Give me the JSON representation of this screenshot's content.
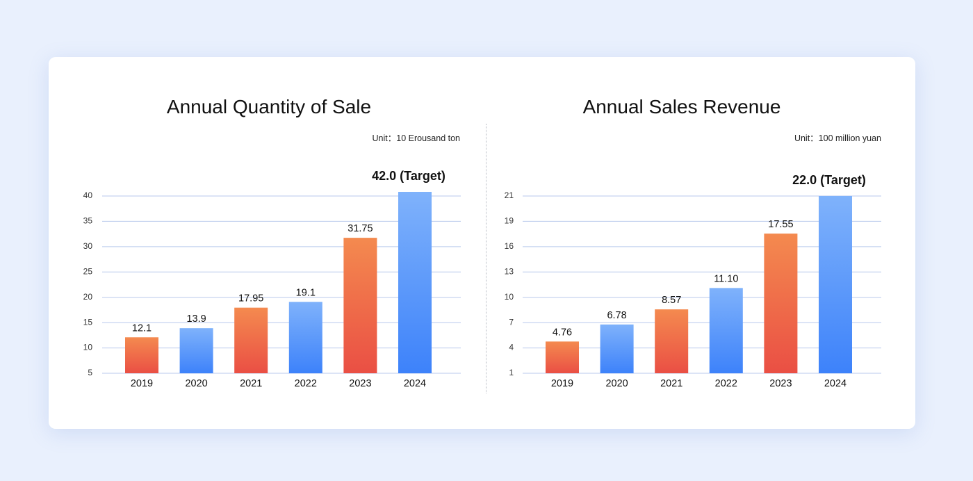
{
  "chart_data": [
    {
      "type": "bar",
      "title": "Annual Quantity of Sale",
      "unit": "Unit：10 Erousand ton",
      "categories": [
        "2019",
        "2020",
        "2021",
        "2022",
        "2023",
        "2024"
      ],
      "values": [
        12.1,
        13.9,
        17.95,
        19.1,
        31.75,
        42.0
      ],
      "value_labels": [
        "12.1",
        "13.9",
        "17.95",
        "19.1",
        "31.75",
        "42.0 (Target)"
      ],
      "yticks": [
        "5",
        "10",
        "15",
        "20",
        "25",
        "30",
        "35",
        "40"
      ],
      "ylim": [
        5,
        40
      ],
      "bar_colors": [
        "red",
        "blue",
        "red",
        "blue",
        "red",
        "blue"
      ],
      "grid": true
    },
    {
      "type": "bar",
      "title": "Annual Sales Revenue",
      "unit": "Unit：100 million yuan",
      "categories": [
        "2019",
        "2020",
        "2021",
        "2022",
        "2023",
        "2024"
      ],
      "values": [
        4.76,
        6.78,
        8.57,
        11.1,
        17.55,
        22.0
      ],
      "value_labels": [
        "4.76",
        "6.78",
        "8.57",
        "11.10",
        "17.55",
        "22.0 (Target)"
      ],
      "yticks": [
        "1",
        "4",
        "7",
        "10",
        "13",
        "16",
        "19",
        "21"
      ],
      "ylim": [
        1,
        22
      ],
      "bar_colors": [
        "red",
        "blue",
        "red",
        "blue",
        "red",
        "blue"
      ],
      "grid": true
    }
  ],
  "colors": {
    "red_top": "#f48a4f",
    "red_bottom": "#ea4f44",
    "blue_top": "#7fb2fb",
    "blue_bottom": "#3d82fa",
    "background": "#e9f0fd",
    "card": "#ffffff"
  }
}
